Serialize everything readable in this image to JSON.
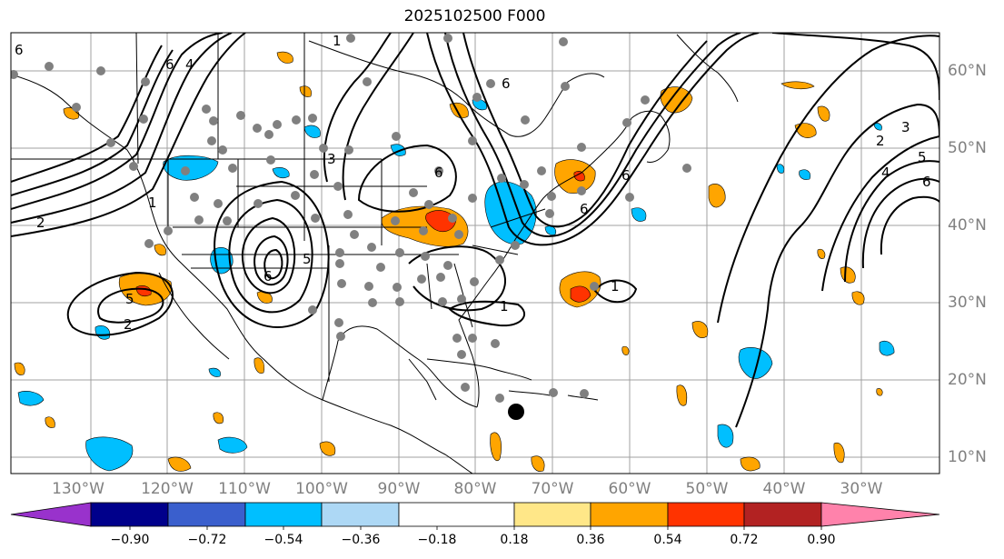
{
  "map": {
    "title": "2025102500 F000",
    "longitude_labels": [
      "130°W",
      "120°W",
      "110°W",
      "100°W",
      "90°W",
      "80°W",
      "70°W",
      "60°W",
      "50°W",
      "40°W",
      "30°W"
    ],
    "latitude_labels": [
      "60°N",
      "50°N",
      "40°N",
      "30°N",
      "20°N",
      "10°N"
    ],
    "contour_labels": [
      "6",
      "6",
      "4",
      "6",
      "2",
      "1",
      "1",
      "5",
      "6",
      "6",
      "6",
      "3",
      "5",
      "2",
      "1",
      "1",
      "6",
      "2",
      "3",
      "4",
      "5",
      "6"
    ],
    "colors": {
      "negative_strong": "#00bfff",
      "positive_medium": "#ffa500",
      "positive_strong": "#ff3300",
      "contour": "#000000",
      "station": "#808080",
      "grid": "#a0a0a0"
    },
    "marker": "black-dot"
  },
  "colorbar": {
    "ticks": [
      "−0.90",
      "−0.72",
      "−0.54",
      "−0.36",
      "−0.18",
      "0.18",
      "0.36",
      "0.54",
      "0.72",
      "0.90"
    ],
    "colors": [
      "#9932cc",
      "#00008b",
      "#3a5fcd",
      "#00bfff",
      "#add8f5",
      "#ffffff",
      "#ffe788",
      "#ffa500",
      "#ff3300",
      "#b22222",
      "#ff82ab"
    ]
  }
}
